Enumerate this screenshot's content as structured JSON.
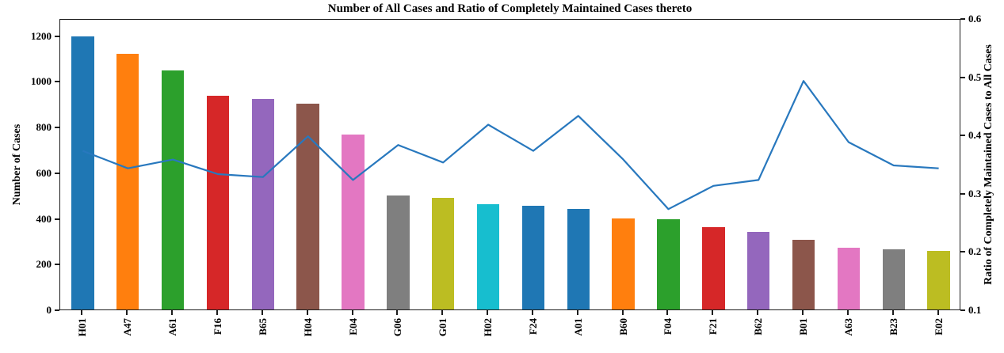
{
  "chart_data": {
    "type": "bar",
    "subtype": "bar-and-line-dual-axis",
    "title": "Number of All Cases and Ratio of Completely Maintained Cases thereto",
    "categories": [
      "H01",
      "A47",
      "A61",
      "F16",
      "B65",
      "H04",
      "E04",
      "G06",
      "G01",
      "H02",
      "F24",
      "A01",
      "B60",
      "F04",
      "F21",
      "B62",
      "B01",
      "A63",
      "B23",
      "E02"
    ],
    "series": [
      {
        "name": "Number of All Cases",
        "type": "bar",
        "axis": "left",
        "values": [
          1195,
          1120,
          1045,
          935,
          920,
          900,
          765,
          500,
          490,
          460,
          455,
          440,
          400,
          395,
          360,
          340,
          305,
          272,
          262,
          258
        ],
        "bar_colors": [
          "#1f77b4",
          "#ff7f0e",
          "#2ca02c",
          "#d62728",
          "#9467bd",
          "#8c564b",
          "#e377c2",
          "#7f7f7f",
          "#bcbd22",
          "#17becf",
          "#1f77b4",
          "#1f77b4",
          "#ff7f0e",
          "#2ca02c",
          "#d62728",
          "#9467bd",
          "#8c564b",
          "#e377c2",
          "#7f7f7f",
          "#bcbd22"
        ]
      },
      {
        "name": "Ratio of Completely Maintained Cases",
        "type": "line",
        "axis": "right",
        "color": "#2878be",
        "values": [
          0.375,
          0.345,
          0.36,
          0.335,
          0.33,
          0.4,
          0.325,
          0.385,
          0.355,
          0.42,
          0.375,
          0.435,
          0.36,
          0.275,
          0.315,
          0.325,
          0.495,
          0.39,
          0.35,
          0.345
        ]
      }
    ],
    "left_axis": {
      "label": "Number of Cases",
      "ticks": [
        0,
        200,
        400,
        600,
        800,
        1000,
        1200
      ],
      "min": 0,
      "max": 1275
    },
    "right_axis": {
      "label": "Ratio of Completely Maintained Cases to All Cases",
      "ticks": [
        0.1,
        0.2,
        0.3,
        0.4,
        0.5,
        0.6
      ],
      "min": 0.1,
      "max": 0.6
    },
    "grid": false,
    "legend": "none",
    "bar_width_fraction": 0.5,
    "spine_color": "#1c1c1c",
    "background_color": "#ffffff"
  }
}
